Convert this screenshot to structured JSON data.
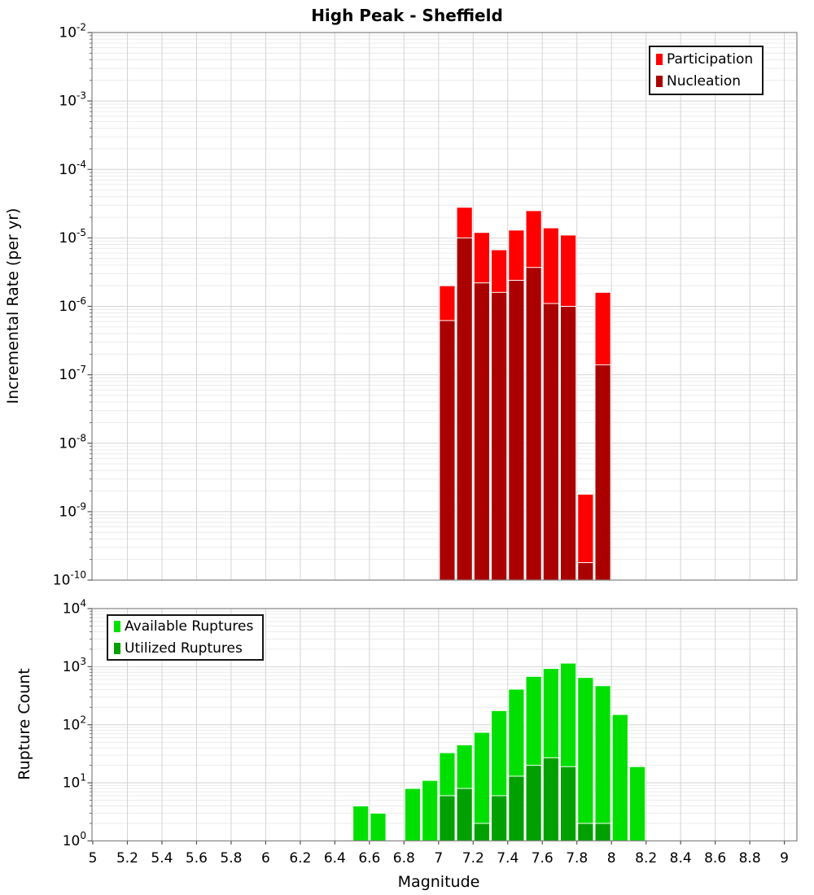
{
  "title": "High Peak - Sheffield",
  "xlabel": "Magnitude",
  "chart_data": [
    {
      "type": "bar",
      "panel": "top",
      "ylabel": "Incremental Rate (per yr)",
      "yscale": "log",
      "ylim_log10": [
        -10,
        -2
      ],
      "y_ticks_exponents": [
        -2,
        -3,
        -4,
        -5,
        -6,
        -7,
        -8,
        -9,
        -10
      ],
      "xlim": [
        5,
        9
      ],
      "bin_width": 0.1,
      "grid": true,
      "legend_position": "top-right",
      "x": [
        7.05,
        7.15,
        7.25,
        7.35,
        7.45,
        7.55,
        7.65,
        7.75,
        7.85,
        7.95
      ],
      "series": [
        {
          "name": "Participation",
          "color": "#ff0000",
          "values": [
            2e-06,
            2.8e-05,
            1.2e-05,
            6.7e-06,
            1.3e-05,
            2.5e-05,
            1.4e-05,
            1.1e-05,
            1.8e-09,
            1.6e-06
          ]
        },
        {
          "name": "Nucleation",
          "color": "#aa0000",
          "values": [
            6.2e-07,
            1e-05,
            2.2e-06,
            1.6e-06,
            2.4e-06,
            3.7e-06,
            1.1e-06,
            1e-06,
            1.8e-10,
            1.4e-07
          ]
        }
      ]
    },
    {
      "type": "bar",
      "panel": "bottom",
      "ylabel": "Rupture Count",
      "yscale": "log",
      "ylim_log10": [
        0,
        4
      ],
      "y_ticks_exponents": [
        4,
        3,
        2,
        1,
        0
      ],
      "xlim": [
        5,
        9
      ],
      "bin_width": 0.1,
      "grid": true,
      "legend_position": "top-left",
      "x": [
        6.55,
        6.65,
        6.85,
        6.95,
        7.05,
        7.15,
        7.25,
        7.35,
        7.45,
        7.55,
        7.65,
        7.75,
        7.85,
        7.95,
        8.05,
        8.15
      ],
      "series": [
        {
          "name": "Available Ruptures",
          "color": "#00e000",
          "values": [
            4,
            3,
            8,
            11,
            33,
            45,
            74,
            175,
            410,
            680,
            930,
            1150,
            650,
            470,
            150,
            19
          ]
        },
        {
          "name": "Utilized Ruptures",
          "color": "#00a000",
          "values": [
            0,
            0,
            0,
            0,
            6,
            8,
            2,
            6,
            13,
            20,
            27,
            19,
            2,
            2,
            0,
            0
          ]
        }
      ],
      "x_ticks": [
        5,
        5.2,
        5.4,
        5.6,
        5.8,
        6,
        6.2,
        6.4,
        6.6,
        6.8,
        7,
        7.2,
        7.4,
        7.6,
        7.8,
        8,
        8.2,
        8.4,
        8.6,
        8.8,
        9
      ],
      "x_tick_labels": [
        "5",
        "5.2",
        "5.4",
        "5.6",
        "5.8",
        "6",
        "6.2",
        "6.4",
        "6.6",
        "6.8",
        "7",
        "7.2",
        "7.4",
        "7.6",
        "7.8",
        "8",
        "8.2",
        "8.4",
        "8.6",
        "8.8",
        "9"
      ]
    }
  ]
}
